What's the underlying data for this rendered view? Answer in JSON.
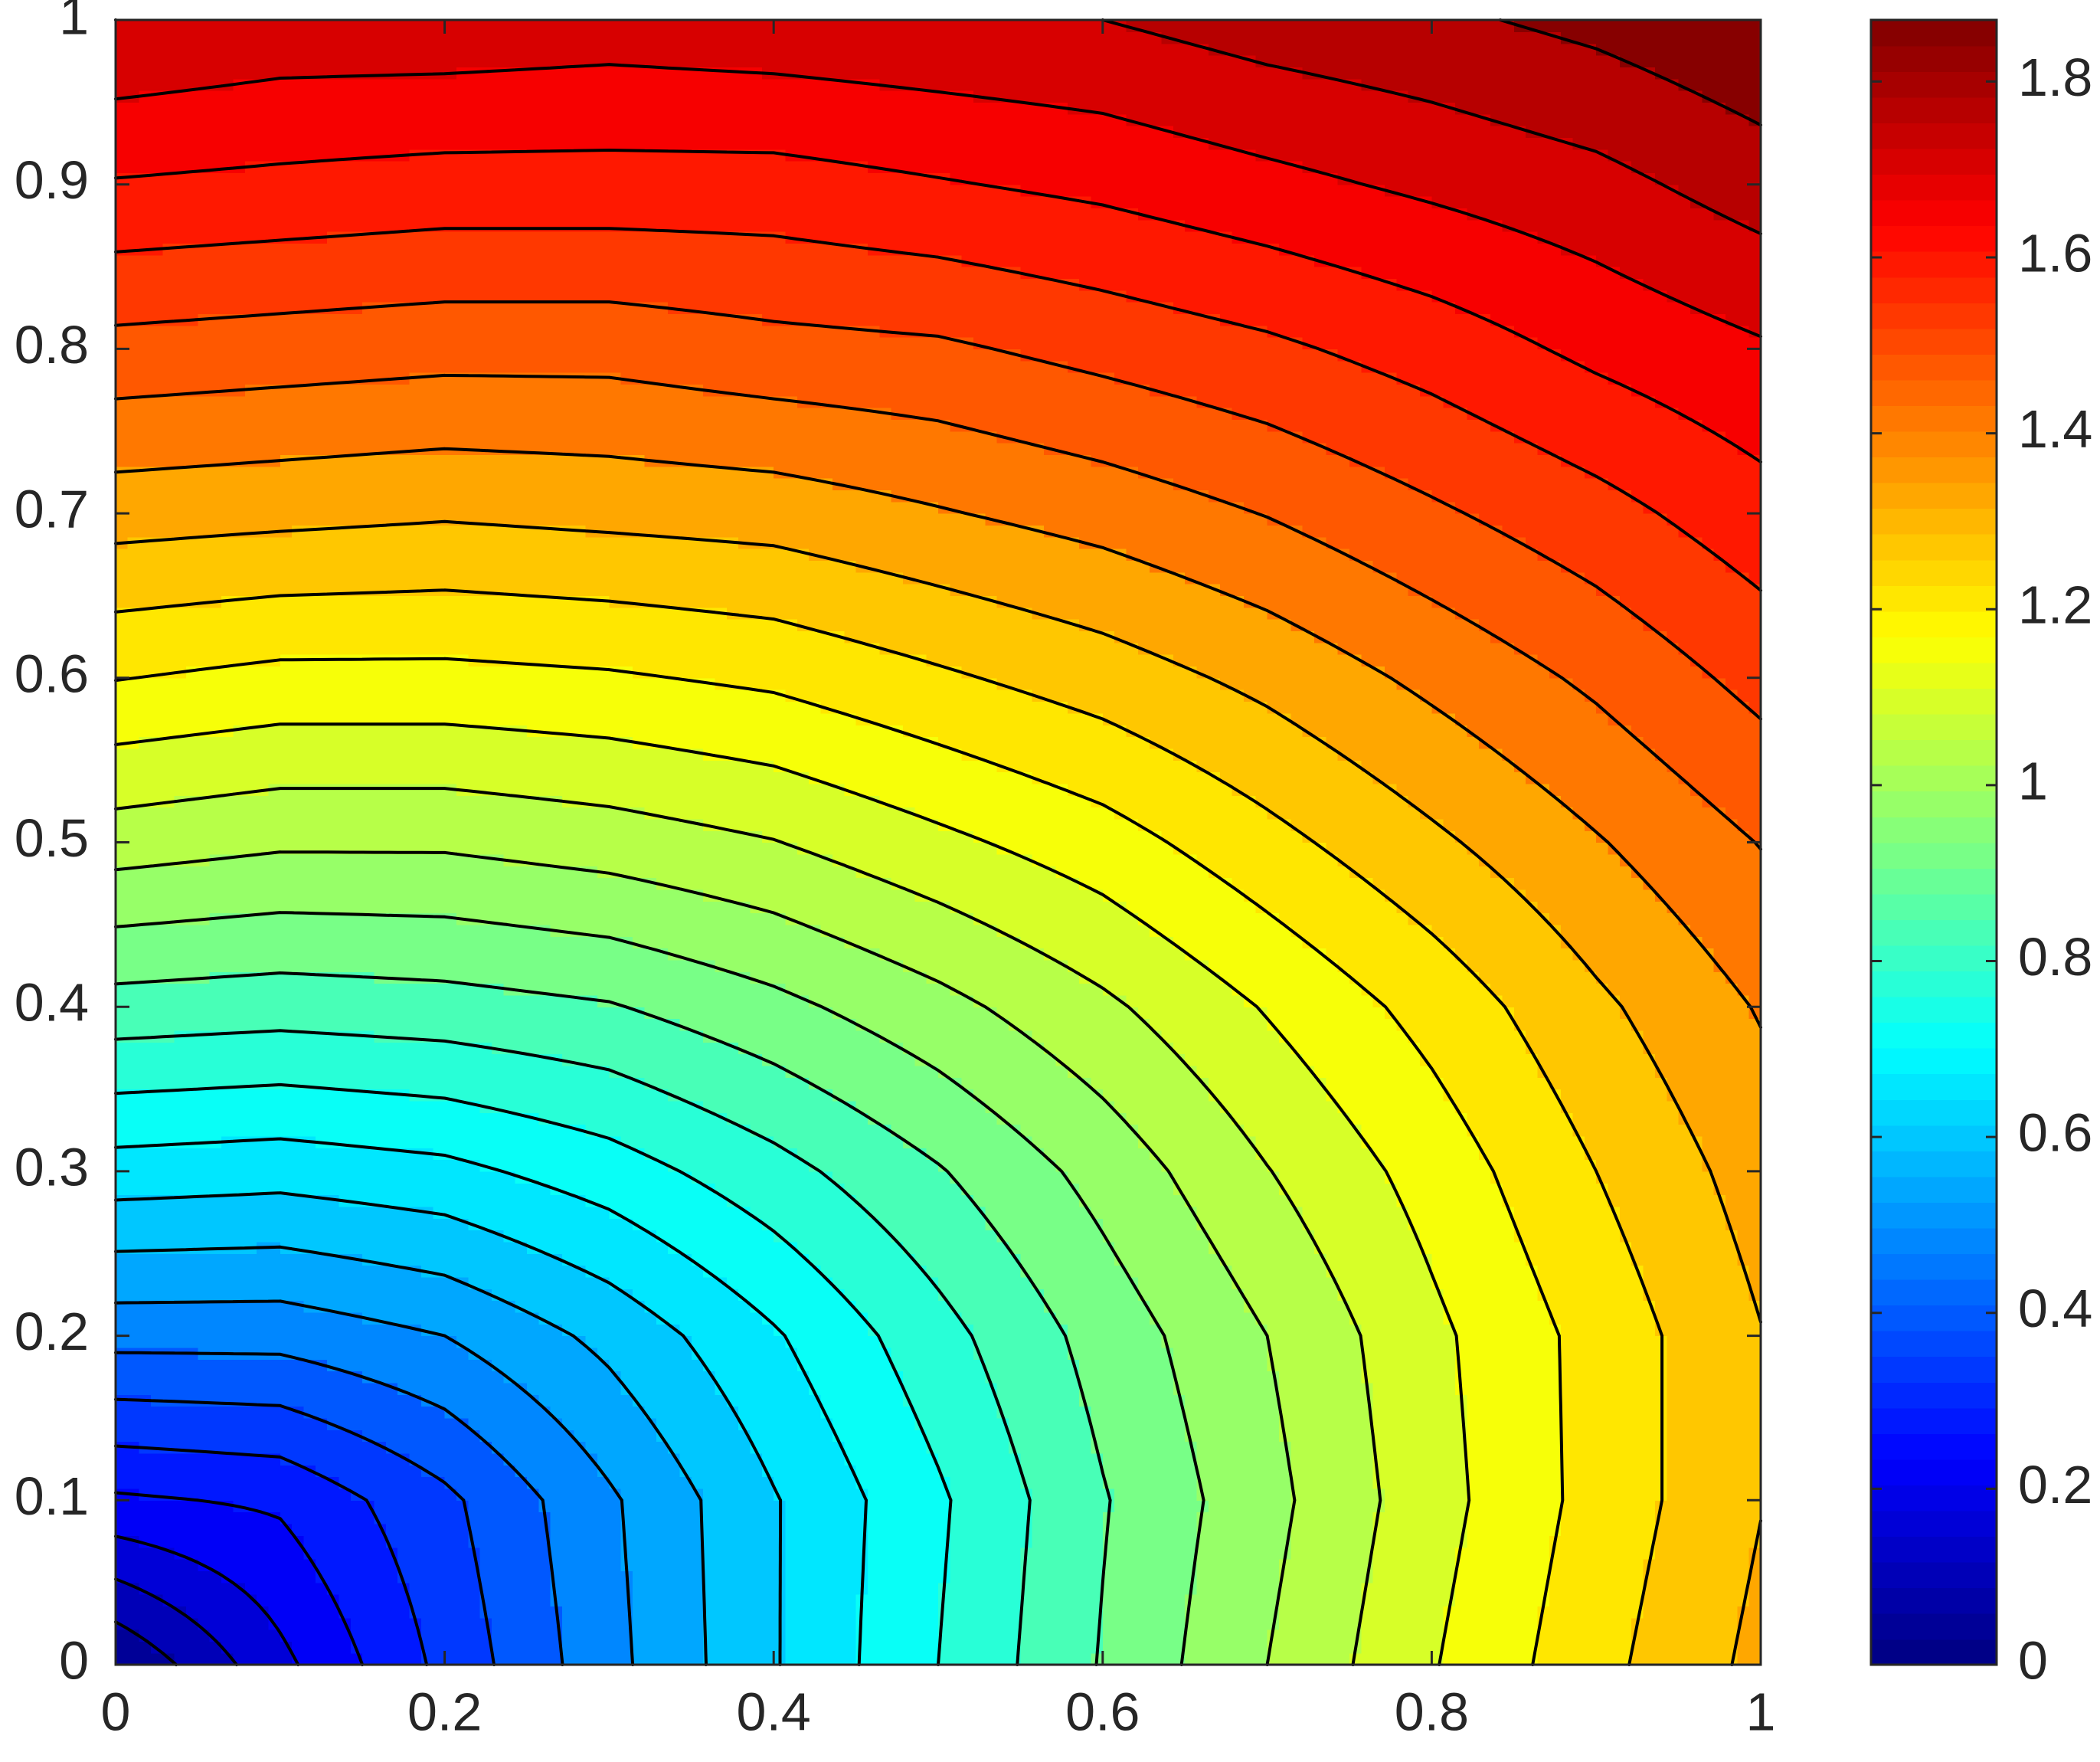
{
  "chart_data": {
    "type": "contourf",
    "x": [
      0,
      0.1,
      0.2,
      0.3,
      0.4,
      0.5,
      0.6,
      0.7,
      0.8,
      0.9,
      1
    ],
    "y": [
      0,
      0.1,
      0.2,
      0.3,
      0.4,
      0.5,
      0.6,
      0.7,
      0.8,
      0.9,
      1
    ],
    "z": [
      [
        0,
        0.17,
        0.33,
        0.48,
        0.62,
        0.75,
        0.88,
        1.0,
        1.12,
        1.23,
        1.33
      ],
      [
        0.24,
        0.26,
        0.36,
        0.49,
        0.62,
        0.74,
        0.87,
        0.98,
        1.1,
        1.21,
        1.31
      ],
      [
        0.46,
        0.46,
        0.5,
        0.58,
        0.68,
        0.79,
        0.9,
        1.0,
        1.11,
        1.21,
        1.31
      ],
      [
        0.66,
        0.65,
        0.67,
        0.72,
        0.79,
        0.87,
        0.96,
        1.06,
        1.15,
        1.25,
        1.34
      ],
      [
        0.85,
        0.84,
        0.85,
        0.87,
        0.92,
        0.98,
        1.05,
        1.13,
        1.21,
        1.3,
        1.38
      ],
      [
        1.03,
        1.01,
        1.01,
        1.03,
        1.06,
        1.11,
        1.16,
        1.23,
        1.3,
        1.37,
        1.44
      ],
      [
        1.19,
        1.17,
        1.17,
        1.18,
        1.2,
        1.24,
        1.28,
        1.33,
        1.39,
        1.45,
        1.52
      ],
      [
        1.34,
        1.33,
        1.32,
        1.33,
        1.34,
        1.37,
        1.4,
        1.44,
        1.49,
        1.54,
        1.6
      ],
      [
        1.48,
        1.47,
        1.46,
        1.46,
        1.48,
        1.49,
        1.52,
        1.55,
        1.59,
        1.64,
        1.68
      ],
      [
        1.62,
        1.61,
        1.6,
        1.6,
        1.6,
        1.62,
        1.64,
        1.67,
        1.7,
        1.73,
        1.78
      ],
      [
        1.75,
        1.73,
        1.73,
        1.72,
        1.73,
        1.74,
        1.75,
        1.78,
        1.8,
        1.83,
        1.87
      ]
    ],
    "xlim": [
      0,
      1
    ],
    "ylim": [
      0,
      1
    ],
    "xticks": [
      0,
      0.2,
      0.4,
      0.6,
      0.8,
      1
    ],
    "yticks": [
      0,
      0.1,
      0.2,
      0.3,
      0.4,
      0.5,
      0.6,
      0.7,
      0.8,
      0.9,
      1
    ],
    "clim": [
      0,
      1.87
    ],
    "cticks": [
      0,
      0.2,
      0.4,
      0.6,
      0.8,
      1,
      1.2,
      1.4,
      1.6,
      1.8
    ],
    "colormap": "jet",
    "colormap_size": 64,
    "level_step": 0.0625,
    "contour_color": "#000000"
  }
}
